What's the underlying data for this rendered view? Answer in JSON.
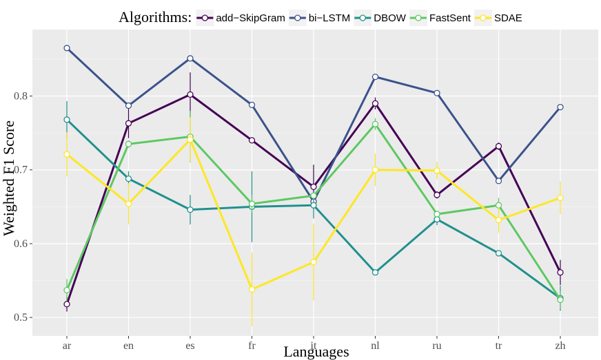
{
  "chart_data": {
    "type": "line",
    "title": "",
    "xlabel": "Languages",
    "ylabel": "Weighted F1 Score",
    "categories": [
      "ar",
      "en",
      "es",
      "fr",
      "it",
      "nl",
      "ru",
      "tr",
      "zh"
    ],
    "ylim": [
      0.475,
      0.89
    ],
    "yticks": [
      0.5,
      0.6,
      0.7,
      0.8
    ],
    "ytick_labels": [
      "0.5",
      "0.6",
      "0.7",
      "0.8"
    ],
    "grid": true,
    "legend": {
      "title": "Algorithms:",
      "position": "top"
    },
    "series": [
      {
        "name": "add−SkipGram",
        "color": "#440154",
        "values": [
          0.518,
          0.763,
          0.802,
          0.74,
          0.677,
          0.79,
          0.666,
          0.732,
          0.561
        ],
        "err": [
          0.01,
          0.02,
          0.03,
          0.0,
          0.03,
          0.008,
          0.005,
          0.005,
          0.017
        ]
      },
      {
        "name": "bi−LSTM",
        "color": "#3B528B",
        "values": [
          0.865,
          0.787,
          0.851,
          0.788,
          0.657,
          0.826,
          0.804,
          0.685,
          0.785
        ],
        "err": [
          0,
          0,
          0,
          0,
          0,
          0,
          0,
          0,
          0
        ]
      },
      {
        "name": "DBOW",
        "color": "#21908C",
        "values": [
          0.768,
          0.688,
          0.646,
          0.65,
          0.652,
          0.561,
          0.633,
          0.587,
          0.526
        ],
        "err": [
          0.025,
          0.01,
          0.02,
          0.048,
          0.018,
          0.0,
          0.008,
          0.0,
          0.017
        ]
      },
      {
        "name": "FastSent",
        "color": "#5DC863",
        "values": [
          0.537,
          0.735,
          0.745,
          0.654,
          0.665,
          0.762,
          0.64,
          0.652,
          0.524
        ],
        "err": [
          0.015,
          0.005,
          0.035,
          0.012,
          0.0,
          0.008,
          0.0,
          0.01,
          0.012
        ]
      },
      {
        "name": "SDAE",
        "color": "#FDE725",
        "values": [
          0.721,
          0.654,
          0.741,
          0.538,
          0.575,
          0.7,
          0.699,
          0.632,
          0.662
        ],
        "err": [
          0.03,
          0.028,
          0.03,
          0.05,
          0.052,
          0.022,
          0.012,
          0.017,
          0.022
        ]
      }
    ]
  }
}
